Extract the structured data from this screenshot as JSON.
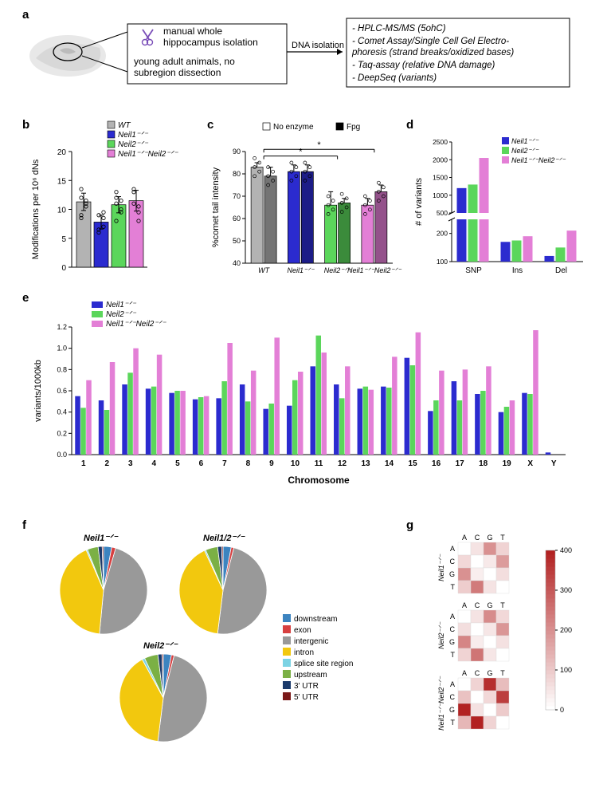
{
  "panel_a": {
    "label": "a",
    "box1_lines": [
      "manual whole",
      "hippocampus isolation"
    ],
    "box1_sub_lines": [
      "young adult animals, no",
      "subregion dissection"
    ],
    "arrow1_label": "DNA isolation",
    "box2_lines": [
      "- HPLC-MS/MS (5ohC)",
      "- Comet Assay/Single Cell Gel Electro-",
      "  phoresis (strand breaks/oxidized bases)",
      "- Taq-assay (relative DNA damage)",
      "- DeepSeq (variants)"
    ]
  },
  "panel_b": {
    "label": "b",
    "ylabel": "Modifications per 10⁶ dNs",
    "ylim": [
      0,
      20
    ],
    "yticks": [
      0,
      5,
      10,
      15,
      20
    ],
    "legend": [
      "WT",
      "Neil1⁻ᐟ⁻",
      "Neil2⁻ᐟ⁻",
      "Neil1⁻ᐟ⁻Neil2⁻ᐟ⁻"
    ],
    "colors": [
      "#b3b3b3",
      "#2b2bcf",
      "#5bd65b",
      "#e37fd6"
    ],
    "values": [
      11.3,
      7.8,
      10.8,
      11.5
    ],
    "errors": [
      1.5,
      1.2,
      1.4,
      1.8
    ],
    "points": [
      [
        9.0,
        11.0,
        13.5,
        10.5,
        12.0,
        11.5,
        8.5
      ],
      [
        6.0,
        8.5,
        9.0,
        7.0,
        6.5,
        9.5
      ],
      [
        12.0,
        9.5,
        11.0,
        10.0,
        13.0,
        11.5,
        8.0
      ],
      [
        13.0,
        9.5,
        11.0,
        10.5,
        13.5,
        8.0
      ]
    ]
  },
  "panel_c": {
    "label": "c",
    "ylabel": "%comet tail intensity",
    "ylim": [
      40,
      90
    ],
    "yticks": [
      40,
      50,
      60,
      70,
      80,
      90
    ],
    "legend": [
      "No enzyme",
      "Fpg"
    ],
    "legend_colors": [
      "#ffffff",
      "#000000"
    ],
    "genotype_colors": [
      "#b3b3b3",
      "#2b2bcf",
      "#5bd65b",
      "#e37fd6"
    ],
    "xlabels": [
      "WT",
      "Neil1⁻ᐟ⁻",
      "Neil2⁻ᐟ⁻",
      "Neil1⁻ᐟ⁻Neil2⁻ᐟ⁻"
    ],
    "values_noenz": [
      83,
      81,
      66,
      66
    ],
    "values_fpg": [
      79,
      81,
      67,
      72
    ],
    "errors_noenz": [
      2,
      3,
      6,
      3
    ],
    "errors_fpg": [
      4,
      3,
      2,
      3
    ],
    "sig": "*"
  },
  "panel_d": {
    "label": "d",
    "ylabel": "# of variants",
    "yticks": [
      100,
      200,
      500,
      1000,
      1500,
      2000,
      2500
    ],
    "xlabels": [
      "SNP",
      "Ins",
      "Del"
    ],
    "legend": [
      "Neil1⁻ᐟ⁻",
      "Neil2⁻ᐟ⁻",
      "Neil1⁻ᐟ⁻Neil2⁻ᐟ⁻"
    ],
    "colors": [
      "#2b2bcf",
      "#5bd65b",
      "#e37fd6"
    ],
    "values": [
      [
        1200,
        1300,
        2050
      ],
      [
        170,
        175,
        190
      ],
      [
        120,
        150,
        210
      ]
    ]
  },
  "panel_e": {
    "label": "e",
    "ylabel": "variants/1000kb",
    "xlabel": "Chromosome",
    "ylim": [
      0.0,
      1.2
    ],
    "yticks": [
      0.0,
      0.2,
      0.4,
      0.6,
      0.8,
      1.0,
      1.2
    ],
    "xticks": [
      "1",
      "2",
      "3",
      "4",
      "5",
      "6",
      "7",
      "8",
      "9",
      "10",
      "11",
      "12",
      "13",
      "14",
      "15",
      "16",
      "17",
      "18",
      "19",
      "X",
      "Y"
    ],
    "legend": [
      "Neil1⁻ᐟ⁻",
      "Neil2⁻ᐟ⁻",
      "Neil1⁻ᐟ⁻Neil2⁻ᐟ⁻"
    ],
    "colors": [
      "#2b2bcf",
      "#5bd65b",
      "#e37fd6"
    ],
    "values": [
      [
        0.55,
        0.44,
        0.7
      ],
      [
        0.51,
        0.42,
        0.87
      ],
      [
        0.66,
        0.77,
        1.0
      ],
      [
        0.62,
        0.64,
        0.94
      ],
      [
        0.58,
        0.6,
        0.6
      ],
      [
        0.52,
        0.54,
        0.55
      ],
      [
        0.53,
        0.69,
        1.05
      ],
      [
        0.66,
        0.5,
        0.79
      ],
      [
        0.43,
        0.48,
        1.1
      ],
      [
        0.46,
        0.7,
        0.78
      ],
      [
        0.83,
        1.12,
        0.96
      ],
      [
        0.66,
        0.53,
        0.83
      ],
      [
        0.62,
        0.64,
        0.61
      ],
      [
        0.64,
        0.63,
        0.92
      ],
      [
        0.91,
        0.84,
        1.15
      ],
      [
        0.41,
        0.51,
        0.79
      ],
      [
        0.69,
        0.51,
        0.8
      ],
      [
        0.57,
        0.6,
        0.83
      ],
      [
        0.4,
        0.45,
        0.51
      ],
      [
        0.58,
        0.57,
        1.17
      ],
      [
        0.02,
        0.0,
        0.0
      ]
    ]
  },
  "panel_f": {
    "label": "f",
    "titles": [
      "Neil1⁻ᐟ⁻",
      "Neil1/2⁻ᐟ⁻",
      "Neil2⁻ᐟ⁻"
    ],
    "legend": [
      "downstream",
      "exon",
      "intergenic",
      "intron",
      "splice site region",
      "upstream",
      "3' UTR",
      "5' UTR"
    ],
    "colors": [
      "#3c84c0",
      "#d74040",
      "#999999",
      "#f2c80e",
      "#7cd3e4",
      "#7bb045",
      "#1b3a6b",
      "#7a1818"
    ],
    "slices": [
      [
        3,
        1.5,
        47,
        42,
        0.5,
        4,
        1.5,
        0.5
      ],
      [
        3,
        1,
        48,
        41,
        0.5,
        4.5,
        1.5,
        0.5
      ],
      [
        3,
        1,
        48,
        40,
        1,
        5,
        1.5,
        0.5
      ]
    ]
  },
  "panel_g": {
    "label": "g",
    "titles": [
      "Neil1⁻ᐟ⁻",
      "Neil2⁻ᐟ⁻",
      "Neil1⁻ᐟ⁻Neil2⁻ᐟ⁻"
    ],
    "axes": [
      "A",
      "C",
      "G",
      "T"
    ],
    "scale_ticks": [
      0,
      100,
      200,
      300,
      400
    ],
    "colormap_low": "#ffffff",
    "colormap_high": "#b22222",
    "matrices": [
      [
        [
          0,
          50,
          200,
          80
        ],
        [
          70,
          0,
          40,
          180
        ],
        [
          200,
          30,
          0,
          60
        ],
        [
          90,
          240,
          50,
          0
        ]
      ],
      [
        [
          0,
          50,
          210,
          70
        ],
        [
          60,
          0,
          45,
          190
        ],
        [
          220,
          35,
          0,
          55
        ],
        [
          80,
          250,
          45,
          0
        ]
      ],
      [
        [
          0,
          80,
          380,
          120
        ],
        [
          110,
          0,
          70,
          350
        ],
        [
          400,
          55,
          0,
          95
        ],
        [
          130,
          400,
          80,
          0
        ]
      ]
    ]
  }
}
